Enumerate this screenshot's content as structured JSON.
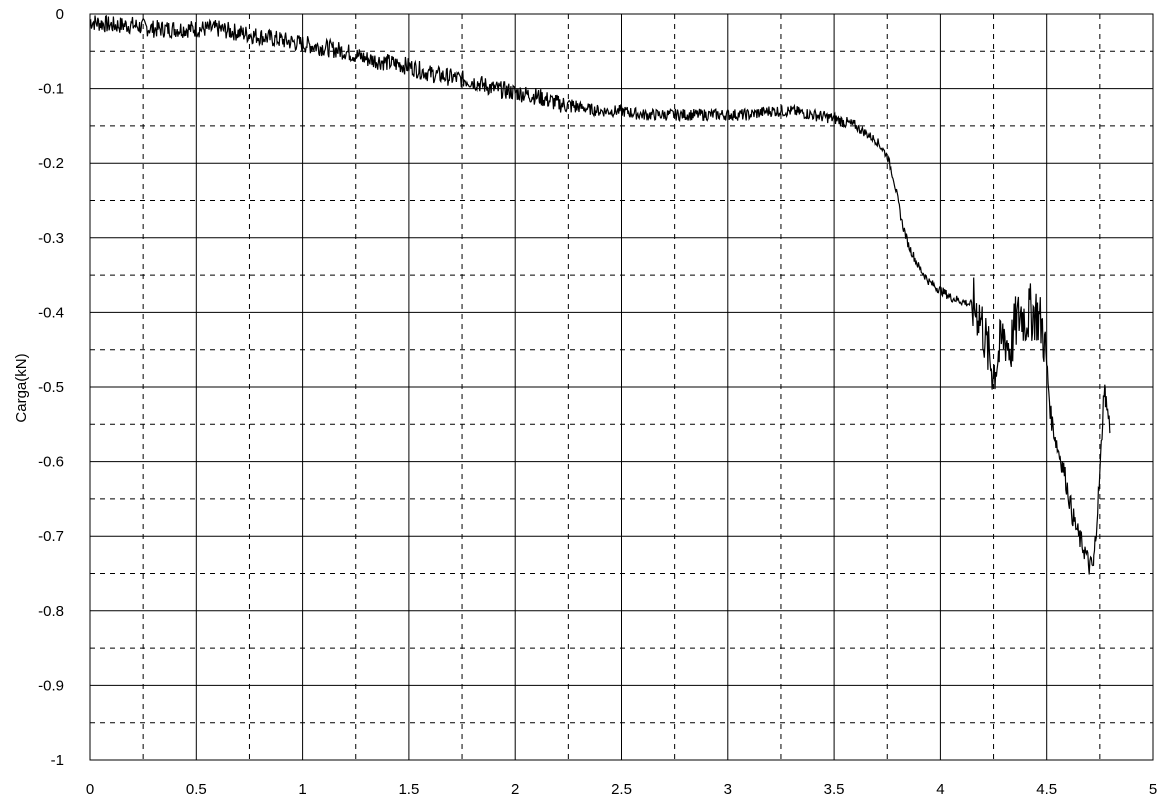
{
  "chart_data": {
    "type": "line",
    "title": "",
    "xlabel": "",
    "ylabel": "Carga(kN)",
    "xlim": [
      0,
      5
    ],
    "ylim": [
      -1,
      0
    ],
    "x_ticks": [
      0,
      0.5,
      1,
      1.5,
      2,
      2.5,
      3,
      3.5,
      4,
      4.5,
      5
    ],
    "x_tick_labels": [
      "0",
      "0.5",
      "1",
      "1.5",
      "2",
      "2.5",
      "3",
      "3.5",
      "4",
      "4.5",
      "5"
    ],
    "y_ticks": [
      0,
      -0.1,
      -0.2,
      -0.3,
      -0.4,
      -0.5,
      -0.6,
      -0.7,
      -0.8,
      -0.9,
      -1
    ],
    "y_tick_labels": [
      "0",
      "-0.1",
      "-0.2",
      "-0.3",
      "-0.4",
      "-0.5",
      "-0.6",
      "-0.7",
      "-0.8",
      "-0.9",
      "-1"
    ],
    "grid": {
      "major": "solid",
      "minor": "dashed"
    },
    "line_color": "#000000",
    "series": [
      {
        "x": [
          0,
          0.1,
          0.2,
          0.3,
          0.4,
          0.5,
          0.6,
          0.7,
          0.8,
          0.9,
          1.0,
          1.1,
          1.2,
          1.3,
          1.4,
          1.5,
          1.6,
          1.7,
          1.8,
          1.9,
          2.0,
          2.1,
          2.2,
          2.3,
          2.4,
          2.5,
          2.6,
          2.7,
          2.8,
          2.9,
          3.0,
          3.1,
          3.2,
          3.3,
          3.4,
          3.5,
          3.55,
          3.6,
          3.65,
          3.7,
          3.75,
          3.78,
          3.8,
          3.82,
          3.85,
          3.9,
          3.95,
          4.0,
          4.05,
          4.1,
          4.15,
          4.18,
          4.2,
          4.22,
          4.25,
          4.27,
          4.3,
          4.33,
          4.35,
          4.38,
          4.4,
          4.42,
          4.45,
          4.48,
          4.5,
          4.52,
          4.55,
          4.58,
          4.6,
          4.62,
          4.65,
          4.68,
          4.7,
          4.72,
          4.73,
          4.75,
          4.77,
          4.78,
          4.8
        ],
        "y": [
          -0.01,
          -0.015,
          -0.015,
          -0.02,
          -0.02,
          -0.02,
          -0.02,
          -0.025,
          -0.03,
          -0.035,
          -0.04,
          -0.045,
          -0.05,
          -0.06,
          -0.065,
          -0.07,
          -0.08,
          -0.085,
          -0.09,
          -0.1,
          -0.105,
          -0.11,
          -0.12,
          -0.125,
          -0.13,
          -0.13,
          -0.135,
          -0.135,
          -0.135,
          -0.135,
          -0.135,
          -0.135,
          -0.13,
          -0.13,
          -0.135,
          -0.14,
          -0.145,
          -0.15,
          -0.16,
          -0.17,
          -0.19,
          -0.22,
          -0.25,
          -0.28,
          -0.31,
          -0.34,
          -0.36,
          -0.37,
          -0.38,
          -0.385,
          -0.39,
          -0.4,
          -0.42,
          -0.45,
          -0.48,
          -0.46,
          -0.43,
          -0.45,
          -0.42,
          -0.4,
          -0.41,
          -0.4,
          -0.4,
          -0.42,
          -0.47,
          -0.54,
          -0.58,
          -0.61,
          -0.64,
          -0.67,
          -0.7,
          -0.72,
          -0.74,
          -0.74,
          -0.7,
          -0.62,
          -0.5,
          -0.52,
          -0.56
        ]
      }
    ]
  }
}
